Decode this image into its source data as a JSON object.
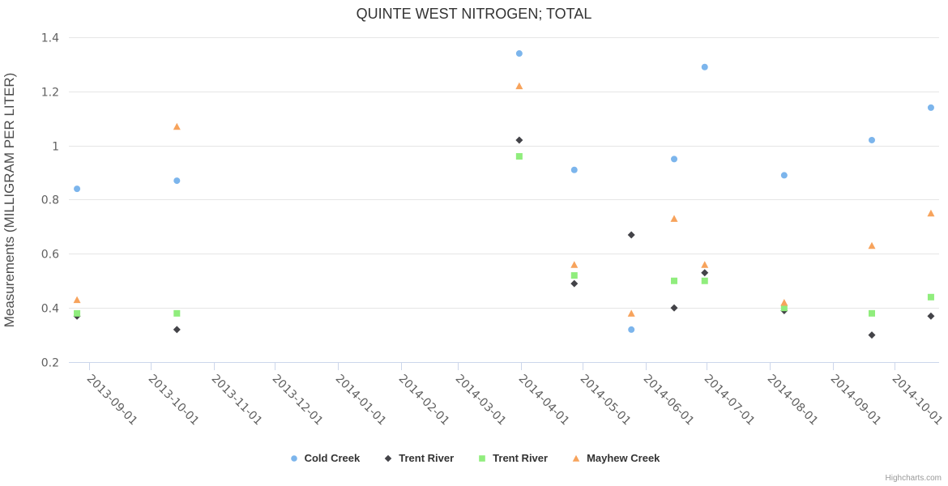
{
  "credits": "Highcharts.com",
  "chart_data": {
    "type": "scatter",
    "title": "QUINTE WEST NITROGEN; TOTAL",
    "xlabel": "",
    "ylabel": "Measurements (MILLIGRAM PER LITER)",
    "ylim": [
      0.2,
      1.4
    ],
    "y_ticks": [
      0.2,
      0.4,
      0.6,
      0.8,
      1,
      1.2,
      1.4
    ],
    "y_tick_labels": [
      "0.2",
      "0.4",
      "0.6",
      "0.8",
      "1",
      "1.2",
      "1.4"
    ],
    "x_range": [
      "2013-08-22",
      "2014-10-23"
    ],
    "x_ticks": [
      "2013-09-01",
      "2013-10-01",
      "2013-11-01",
      "2013-12-01",
      "2014-01-01",
      "2014-02-01",
      "2014-03-01",
      "2014-04-01",
      "2014-05-01",
      "2014-06-01",
      "2014-07-01",
      "2014-08-01",
      "2014-09-01",
      "2014-10-01"
    ],
    "grid": true,
    "legend_position": "bottom",
    "series": [
      {
        "name": "Cold Creek",
        "color": "#7cb5ec",
        "marker": "circle",
        "points": [
          {
            "x": "2013-08-26",
            "y": 0.84
          },
          {
            "x": "2013-10-14",
            "y": 0.87
          },
          {
            "x": "2014-03-31",
            "y": 1.34
          },
          {
            "x": "2014-04-27",
            "y": 0.91
          },
          {
            "x": "2014-05-25",
            "y": 0.32
          },
          {
            "x": "2014-06-15",
            "y": 0.95
          },
          {
            "x": "2014-06-30",
            "y": 1.29
          },
          {
            "x": "2014-08-08",
            "y": 0.89
          },
          {
            "x": "2014-09-20",
            "y": 1.02
          },
          {
            "x": "2014-10-19",
            "y": 1.14
          }
        ]
      },
      {
        "name": "Trent River",
        "color": "#434348",
        "marker": "diamond",
        "points": [
          {
            "x": "2013-08-26",
            "y": 0.37
          },
          {
            "x": "2013-10-14",
            "y": 0.32
          },
          {
            "x": "2014-03-31",
            "y": 1.02
          },
          {
            "x": "2014-04-27",
            "y": 0.49
          },
          {
            "x": "2014-05-25",
            "y": 0.67
          },
          {
            "x": "2014-06-15",
            "y": 0.4
          },
          {
            "x": "2014-06-30",
            "y": 0.53
          },
          {
            "x": "2014-08-08",
            "y": 0.39
          },
          {
            "x": "2014-09-20",
            "y": 0.3
          },
          {
            "x": "2014-10-19",
            "y": 0.37
          }
        ]
      },
      {
        "name": "Trent River",
        "color": "#90ed7d",
        "marker": "square",
        "points": [
          {
            "x": "2013-08-26",
            "y": 0.38
          },
          {
            "x": "2013-10-14",
            "y": 0.38
          },
          {
            "x": "2014-03-31",
            "y": 0.96
          },
          {
            "x": "2014-04-27",
            "y": 0.52
          },
          {
            "x": "2014-06-15",
            "y": 0.5
          },
          {
            "x": "2014-06-30",
            "y": 0.5
          },
          {
            "x": "2014-08-08",
            "y": 0.4
          },
          {
            "x": "2014-09-20",
            "y": 0.38
          },
          {
            "x": "2014-10-19",
            "y": 0.44
          }
        ]
      },
      {
        "name": "Mayhew Creek",
        "color": "#f7a35c",
        "marker": "triangle",
        "points": [
          {
            "x": "2013-08-26",
            "y": 0.43
          },
          {
            "x": "2013-10-14",
            "y": 1.07
          },
          {
            "x": "2014-03-31",
            "y": 1.22
          },
          {
            "x": "2014-04-27",
            "y": 0.56
          },
          {
            "x": "2014-05-25",
            "y": 0.38
          },
          {
            "x": "2014-06-15",
            "y": 0.73
          },
          {
            "x": "2014-06-30",
            "y": 0.56
          },
          {
            "x": "2014-08-08",
            "y": 0.42
          },
          {
            "x": "2014-09-20",
            "y": 0.63
          },
          {
            "x": "2014-10-19",
            "y": 0.75
          }
        ]
      }
    ]
  }
}
